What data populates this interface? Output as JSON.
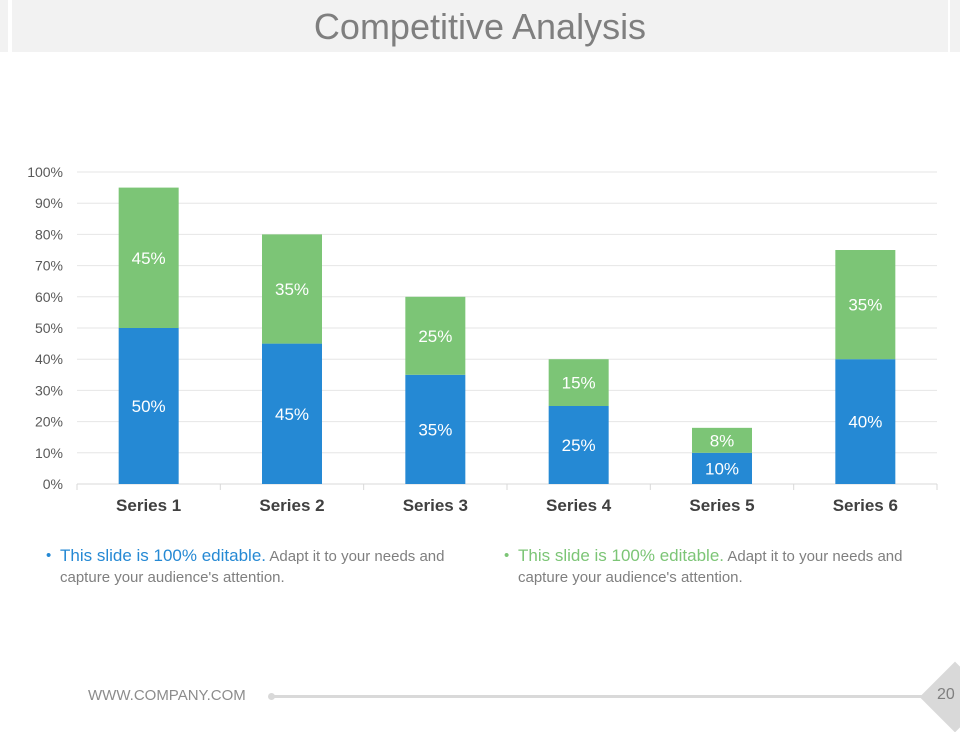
{
  "title": "Competitive Analysis",
  "chart_data": {
    "type": "bar",
    "stacked": true,
    "categories": [
      "Series 1",
      "Series 2",
      "Series 3",
      "Series 4",
      "Series 5",
      "Series 6"
    ],
    "series": [
      {
        "values": [
          50,
          45,
          35,
          25,
          10,
          40
        ],
        "color": "#2589d4"
      },
      {
        "values": [
          45,
          35,
          25,
          15,
          8,
          35
        ],
        "color": "#7cc576"
      }
    ],
    "data_labels": true,
    "ylim": [
      0,
      100
    ],
    "yticks": [
      "0%",
      "10%",
      "20%",
      "30%",
      "40%",
      "50%",
      "60%",
      "70%",
      "80%",
      "90%",
      "100%"
    ],
    "grid": true
  },
  "notes": [
    {
      "highlight": "This slide is 100% editable.",
      "text": " Adapt it to your needs and capture your audience's attention.",
      "color": "#2589d4"
    },
    {
      "highlight": "This slide is 100% editable.",
      "text": " Adapt it to your needs and capture your audience's attention.",
      "color": "#7cc576"
    }
  ],
  "footer": {
    "website": "WWW.COMPANY.COM",
    "page": "20"
  }
}
